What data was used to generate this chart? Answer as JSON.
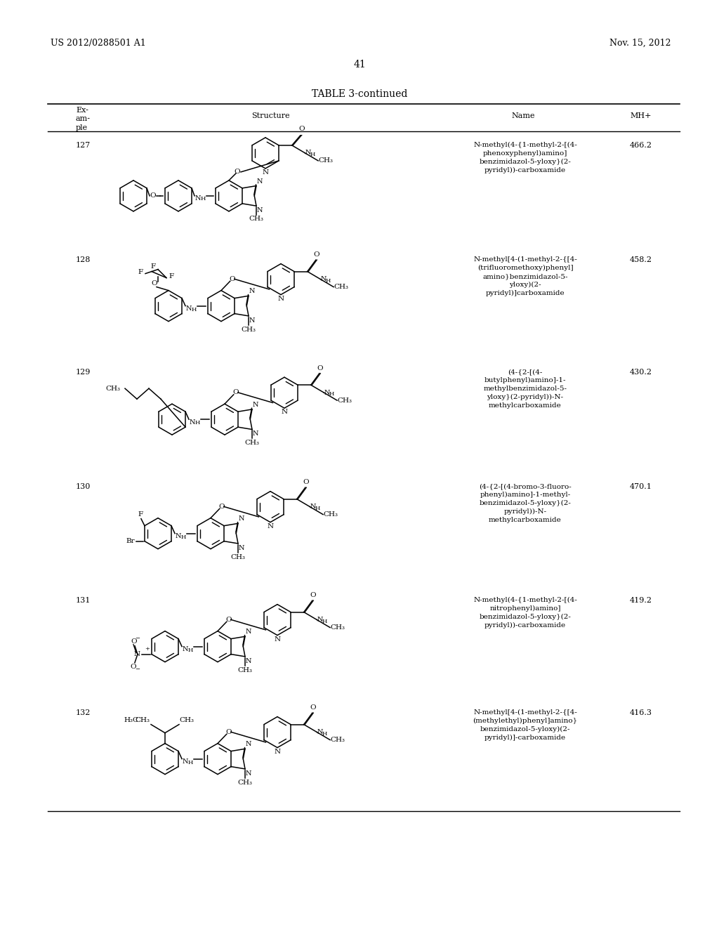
{
  "background_color": "#ffffff",
  "header_left": "US 2012/0288501 A1",
  "header_right": "Nov. 15, 2012",
  "page_number": "41",
  "table_title": "TABLE 3-continued",
  "rows": [
    {
      "example": "127",
      "name": "N-methyl(4-{1-methyl-2-[(4-\nphenoxyphenyl)amino]\nbenzimidazol-5-yloxy}(2-\npyridyl))-carboxamide",
      "mh": "466.2"
    },
    {
      "example": "128",
      "name": "N-methyl[4-(1-methyl-2-{[4-\n(trifluoromethoxy)phenyl]\namino}benzimidazol-5-\nyloxy)(2-\npyridyl)]carboxamide",
      "mh": "458.2"
    },
    {
      "example": "129",
      "name": "(4-{2-[(4-\nbutylphenyl)amino]-1-\nmethylbenzimidazol-5-\nyloxy}(2-pyridyl))-N-\nmethylcarboxamide",
      "mh": "430.2"
    },
    {
      "example": "130",
      "name": "(4-{2-[(4-bromo-3-fluoro-\nphenyl)amino]-1-methyl-\nbenzimidazol-5-yloxy}(2-\npyridyl))-N-\nmethylcarboxamide",
      "mh": "470.1"
    },
    {
      "example": "131",
      "name": "N-methyl(4-{1-methyl-2-[(4-\nnitrophenyl)amino]\nbenzimidazol-5-yloxy}(2-\npyridyl))-carboxamide",
      "mh": "419.2"
    },
    {
      "example": "132",
      "name": "N-methyl[4-(1-methyl-2-{[4-\n(methylethyl)phenyl]amino}\nbenzimidazol-5-yloxy)(2-\npyridyl)]-carboxamide",
      "mh": "416.3"
    }
  ]
}
